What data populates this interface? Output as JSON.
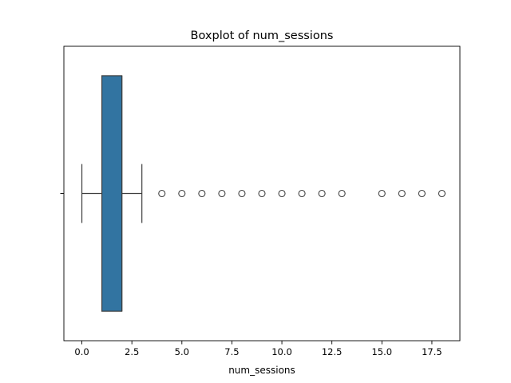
{
  "chart_data": {
    "type": "box",
    "title": "Boxplot of num_sessions",
    "xlabel": "num_sessions",
    "ylabel": "",
    "orientation": "horizontal",
    "xlim": [
      -0.9,
      18.9
    ],
    "xticks": [
      0.0,
      2.5,
      5.0,
      7.5,
      10.0,
      12.5,
      15.0,
      17.5
    ],
    "xtick_labels": [
      "0.0",
      "2.5",
      "5.0",
      "7.5",
      "10.0",
      "12.5",
      "15.0",
      "17.5"
    ],
    "grid": false,
    "box_color": "#3274a1",
    "line_color": "#3f3f3f",
    "box": {
      "whisker_low": 0,
      "q1": 1,
      "median": 2,
      "q3": 2,
      "whisker_high": 3
    },
    "outliers": [
      4,
      5,
      6,
      7,
      8,
      9,
      10,
      11,
      12,
      13,
      15,
      16,
      17,
      18
    ]
  }
}
